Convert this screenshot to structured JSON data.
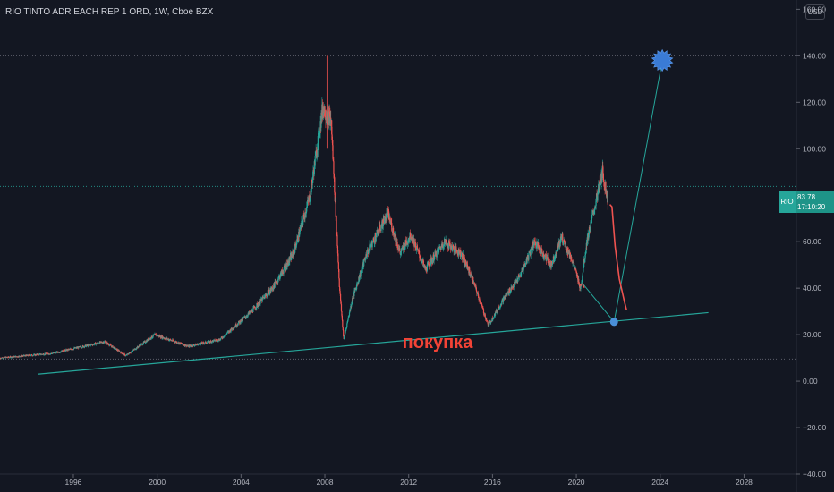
{
  "header": {
    "title": "RIO TINTO ADR EACH REP 1 ORD, 1W, Cboe BZX",
    "currency": "USD"
  },
  "price_label": {
    "symbol": "RIO",
    "price": "83.78",
    "countdown": "17:10:20"
  },
  "colors": {
    "background": "#131722",
    "up": "#26a69a",
    "down": "#ef5350",
    "annotation": "#26a69a",
    "target_marker": "#2962ff",
    "buy_text": "#f44336"
  },
  "annotation": {
    "buy_text": "покупка"
  },
  "chart_data": {
    "type": "candlestick",
    "x_ticks": [
      "1996",
      "2000",
      "2004",
      "2008",
      "2012",
      "2016",
      "2020",
      "2024",
      "2028"
    ],
    "y_ticks": [
      "160.00",
      "140.00",
      "120.00",
      "100.00",
      "80.00",
      "60.00",
      "40.00",
      "20.00",
      "0.00",
      "−20.00",
      "−40.00"
    ],
    "ylim": [
      -40,
      164
    ],
    "xlim": [
      1992.5,
      2030.5
    ],
    "horizontal_lines": [
      140,
      9.5
    ],
    "price_line": 83.78,
    "support_line": {
      "points": [
        [
          1994.3,
          3
        ],
        [
          2026.3,
          29.5
        ]
      ]
    },
    "path_points": [
      [
        2020.3,
        42
      ],
      [
        2021.8,
        25.5
      ],
      [
        2024.1,
        138
      ]
    ],
    "target_marker": {
      "year": 2024.1,
      "value": 138
    },
    "buy_point": {
      "year": 2021.8,
      "value": 25.5
    },
    "curved_projection": [
      [
        2021.6,
        76
      ],
      [
        2021.7,
        75
      ],
      [
        2021.85,
        58
      ],
      [
        2022.05,
        44
      ],
      [
        2022.3,
        34
      ],
      [
        2022.4,
        30.5
      ]
    ],
    "price_anchors": [
      [
        1992.5,
        10
      ],
      [
        1995.0,
        12
      ],
      [
        1997.5,
        17
      ],
      [
        1998.5,
        11
      ],
      [
        1999.9,
        20
      ],
      [
        2001.5,
        15
      ],
      [
        2003.0,
        18
      ],
      [
        2004.5,
        30
      ],
      [
        2005.5,
        40
      ],
      [
        2006.5,
        55
      ],
      [
        2007.3,
        80
      ],
      [
        2007.9,
        118
      ],
      [
        2008.3,
        112
      ],
      [
        2008.7,
        40
      ],
      [
        2008.9,
        18
      ],
      [
        2009.3,
        35
      ],
      [
        2010.0,
        55
      ],
      [
        2011.0,
        72
      ],
      [
        2011.6,
        55
      ],
      [
        2012.1,
        63
      ],
      [
        2012.8,
        48
      ],
      [
        2013.7,
        60
      ],
      [
        2014.5,
        55
      ],
      [
        2015.0,
        45
      ],
      [
        2015.8,
        24
      ],
      [
        2016.5,
        35
      ],
      [
        2017.3,
        45
      ],
      [
        2018.0,
        60
      ],
      [
        2018.8,
        50
      ],
      [
        2019.3,
        62
      ],
      [
        2019.8,
        52
      ],
      [
        2020.2,
        40
      ],
      [
        2020.5,
        60
      ],
      [
        2021.0,
        80
      ],
      [
        2021.25,
        90
      ],
      [
        2021.5,
        78
      ]
    ]
  }
}
